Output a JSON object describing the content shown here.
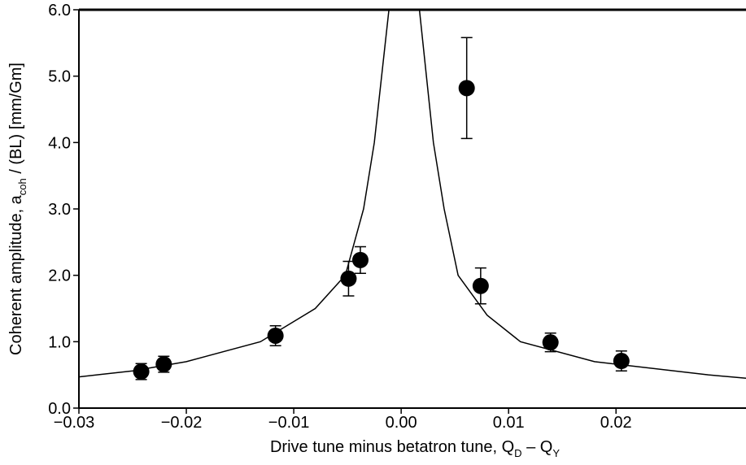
{
  "chart_data": {
    "type": "scatter",
    "x_label": [
      "Drive tune minus betatron tune, Q",
      "D",
      " – Q",
      "Y"
    ],
    "y_label": [
      "Coherent amplitude, a",
      "coh",
      " / (BL) [mm/Gm]"
    ],
    "xlim": [
      -0.03,
      0.0321
    ],
    "ylim": [
      0,
      6
    ],
    "xticks": [
      {
        "value": -0.03,
        "label": "−0.03"
      },
      {
        "value": -0.02,
        "label": "−0.02"
      },
      {
        "value": -0.01,
        "label": "−0.01"
      },
      {
        "value": 0,
        "label": "0.00"
      },
      {
        "value": 0.01,
        "label": "0.01"
      },
      {
        "value": 0.02,
        "label": "0.02"
      }
    ],
    "yticks": [
      {
        "value": 0,
        "label": "0.0"
      },
      {
        "value": 1,
        "label": "1.0"
      },
      {
        "value": 2,
        "label": "2.0"
      },
      {
        "value": 3,
        "label": "3.0"
      },
      {
        "value": 4,
        "label": "4.0"
      },
      {
        "value": 5,
        "label": "5.0"
      },
      {
        "value": 6,
        "label": "6.0"
      }
    ],
    "points": {
      "color": "#000000",
      "x": [
        -0.0242,
        -0.0221,
        -0.0117,
        -0.0049,
        -0.0038,
        0.0061,
        0.0074,
        0.0139,
        0.0205
      ],
      "values": [
        0.55,
        0.66,
        1.09,
        1.95,
        2.23,
        4.82,
        1.84,
        0.99,
        0.71
      ],
      "errors": [
        0.12,
        0.12,
        0.15,
        0.26,
        0.2,
        0.76,
        0.27,
        0.14,
        0.15
      ]
    },
    "fit": {
      "color": "#000000",
      "x": [
        -0.03,
        -0.025,
        -0.02,
        -0.0131,
        -0.008,
        -0.0052,
        -0.0035,
        -0.0025,
        -0.00114,
        0.0017,
        0.003,
        0.004,
        0.0053,
        0.008,
        0.0111,
        0.018,
        0.0286,
        0.0321
      ],
      "values": [
        0.47,
        0.56,
        0.7,
        1.0,
        1.5,
        2.0,
        3.0,
        4.0,
        6.0,
        6.0,
        4.0,
        3.0,
        2.0,
        1.4,
        1.0,
        0.7,
        0.5,
        0.45
      ]
    }
  }
}
